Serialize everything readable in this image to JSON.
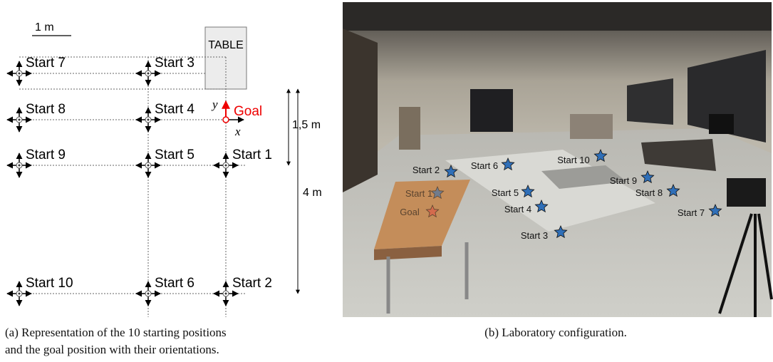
{
  "diagram": {
    "scale_label": "1 m",
    "table_label": "TABLE",
    "starts": [
      "Start 1",
      "Start 2",
      "Start 3",
      "Start 4",
      "Start 5",
      "Start 6",
      "Start 7",
      "Start 8",
      "Start 9",
      "Start 10"
    ],
    "goal_label": "Goal",
    "x_axis_label": "x⃗",
    "y_axis_label": "y⃗",
    "dim_short": "1,5 m",
    "dim_long": "4 m",
    "caption_line1": "(a) Representation of the 10 starting positions",
    "caption_line2": "and the goal position with their orientations."
  },
  "photo": {
    "starts": [
      "Start 1",
      "Start 2",
      "Start 3",
      "Start 4",
      "Start 5",
      "Start 6",
      "Start 7",
      "Start 8",
      "Start 9",
      "Start 10"
    ],
    "goal_label": "Goal",
    "caption": "(b) Laboratory configuration."
  }
}
